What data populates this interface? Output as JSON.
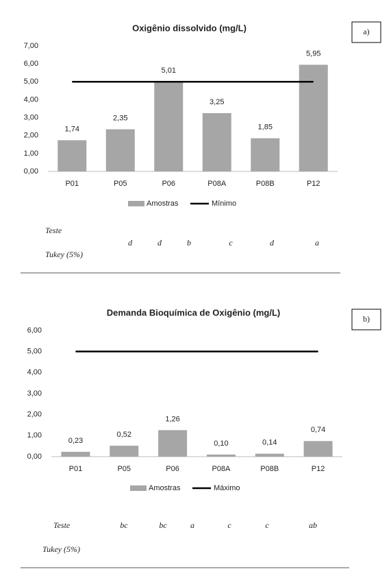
{
  "chart_data": [
    {
      "type": "bar",
      "title": "Oxigênio dissolvido (mg/L)",
      "panel_label": "a)",
      "categories": [
        "P01",
        "P05",
        "P06",
        "P08A",
        "P08B",
        "P12"
      ],
      "series": [
        {
          "name": "Amostras",
          "color": "#a6a6a6",
          "values": [
            1.74,
            2.35,
            5.01,
            3.25,
            1.85,
            5.95
          ],
          "value_labels": [
            "1,74",
            "2,35",
            "5,01",
            "3,25",
            "1,85",
            "5,95"
          ]
        },
        {
          "name": "Mínimo",
          "type": "line",
          "color": "#000000",
          "values": [
            5,
            5,
            5,
            5,
            5,
            5
          ]
        }
      ],
      "ylim": [
        0,
        7
      ],
      "yticks": [
        {
          "value": 0,
          "label": "0,00"
        },
        {
          "value": 1,
          "label": "1,00"
        },
        {
          "value": 2,
          "label": "2,00"
        },
        {
          "value": 3,
          "label": "3,00"
        },
        {
          "value": 4,
          "label": "4,00"
        },
        {
          "value": 5,
          "label": "5,00"
        },
        {
          "value": 6,
          "label": "6,00"
        },
        {
          "value": 7,
          "label": "7,00"
        }
      ],
      "legend": "bottom",
      "tukey": {
        "label_lines": [
          "Teste",
          "Tukey (5%)"
        ],
        "letters": [
          "d",
          "d",
          "b",
          "c",
          "d",
          "a"
        ]
      }
    },
    {
      "type": "bar",
      "title": "Demanda Bioquímica de Oxigênio (mg/L)",
      "panel_label": "b)",
      "categories": [
        "P01",
        "P05",
        "P06",
        "P08A",
        "P08B",
        "P12"
      ],
      "series": [
        {
          "name": "Amostras",
          "color": "#a6a6a6",
          "values": [
            0.23,
            0.52,
            1.26,
            0.1,
            0.14,
            0.74
          ],
          "value_labels": [
            "0,23",
            "0,52",
            "1,26",
            "0,10",
            "0,14",
            "0,74"
          ]
        },
        {
          "name": "Máximo",
          "type": "line",
          "color": "#000000",
          "values": [
            5,
            5,
            5,
            5,
            5,
            5
          ]
        }
      ],
      "ylim": [
        0,
        6
      ],
      "yticks": [
        {
          "value": 0,
          "label": "0,00"
        },
        {
          "value": 1,
          "label": "1,00"
        },
        {
          "value": 2,
          "label": "2,00"
        },
        {
          "value": 3,
          "label": "3,00"
        },
        {
          "value": 4,
          "label": "4,00"
        },
        {
          "value": 5,
          "label": "5,00"
        },
        {
          "value": 6,
          "label": "6,00"
        }
      ],
      "legend": "bottom",
      "tukey": {
        "label_lines": [
          "Teste",
          "Tukey (5%)"
        ],
        "letters": [
          "bc",
          "bc",
          "a",
          "c",
          "c",
          "ab"
        ]
      }
    }
  ]
}
